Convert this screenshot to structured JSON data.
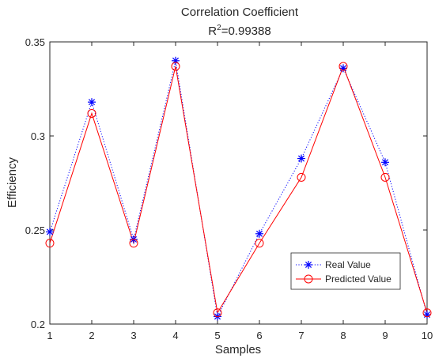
{
  "chart_data": {
    "type": "line",
    "title": "Correlation Coefficient",
    "subtitle": {
      "prefix": "R",
      "superscript": "2",
      "suffix": "=0.99388"
    },
    "xlabel": "Samples",
    "ylabel": "Efficiency",
    "xlim": [
      1,
      10
    ],
    "ylim": [
      0.2,
      0.35
    ],
    "x_ticks": [
      1,
      2,
      3,
      4,
      5,
      6,
      7,
      8,
      9,
      10
    ],
    "y_ticks": [
      0.2,
      0.25,
      0.3,
      0.35
    ],
    "y_tick_labels": [
      "0.2",
      "0.25",
      "0.3",
      "0.35"
    ],
    "grid": false,
    "legend_position": "bottom-right",
    "x": [
      1,
      2,
      3,
      4,
      5,
      6,
      7,
      8,
      9,
      10
    ],
    "series": [
      {
        "name": "Real Value",
        "values": [
          0.249,
          0.318,
          0.245,
          0.34,
          0.204,
          0.248,
          0.288,
          0.336,
          0.286,
          0.205
        ],
        "color": "#0000ff",
        "line_style": "dotted",
        "marker": "asterisk"
      },
      {
        "name": "Predicted Value",
        "values": [
          0.243,
          0.312,
          0.243,
          0.337,
          0.206,
          0.243,
          0.278,
          0.337,
          0.278,
          0.206
        ],
        "color": "#ff0000",
        "line_style": "solid",
        "marker": "circle"
      }
    ]
  }
}
